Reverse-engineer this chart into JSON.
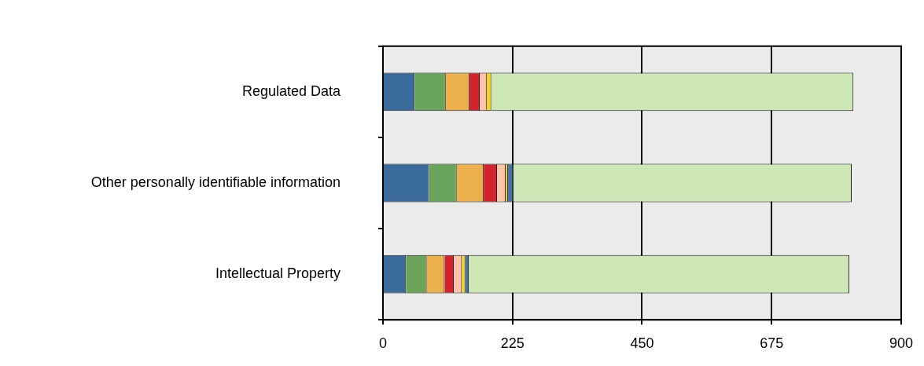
{
  "chart_data": {
    "type": "bar",
    "orientation": "horizontal",
    "stacked": true,
    "categories": [
      "Regulated Data",
      "Other personally identifiable information",
      "Intellectual Property"
    ],
    "series": [
      {
        "color": "#3a6a9a",
        "values": [
          55,
          80,
          40
        ]
      },
      {
        "color": "#6aa35a",
        "values": [
          54,
          48,
          36
        ]
      },
      {
        "color": "#ecb04c",
        "values": [
          41,
          47,
          31
        ]
      },
      {
        "color": "#d3242e",
        "values": [
          18,
          23,
          16
        ]
      },
      {
        "color": "#fdc3ab",
        "values": [
          12,
          15,
          14
        ]
      },
      {
        "color": "#f4d21a",
        "values": [
          8,
          4,
          6
        ]
      },
      {
        "color": "#4575a5",
        "values": [
          0,
          9,
          6
        ]
      },
      {
        "color": "#cce7b5",
        "values": [
          629,
          588,
          661
        ]
      }
    ],
    "xlim": [
      0,
      900
    ],
    "xticks": [
      0,
      225,
      450,
      675,
      900
    ],
    "grid": "x"
  }
}
